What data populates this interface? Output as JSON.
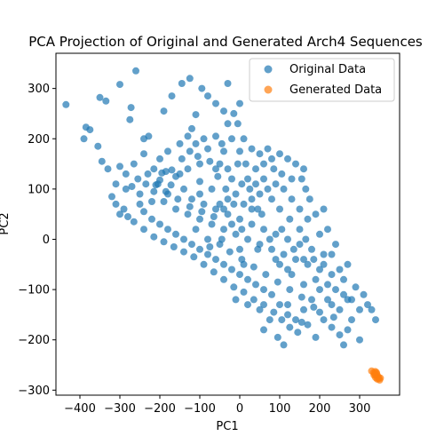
{
  "chart_data": {
    "type": "scatter",
    "title": "PCA Projection of Original and Generated Arch4 Sequences",
    "xlabel": "PC1",
    "ylabel": "PC2",
    "xlim": [
      -460,
      400
    ],
    "ylim": [
      -310,
      370
    ],
    "xticks": [
      -400,
      -300,
      -200,
      -100,
      0,
      100,
      200,
      300
    ],
    "yticks": [
      -300,
      -200,
      -100,
      0,
      100,
      200,
      300
    ],
    "grid": false,
    "legend": {
      "position": "top-right",
      "entries": [
        "Original Data",
        "Generated Data"
      ]
    },
    "series": [
      {
        "name": "Original Data",
        "color": "#1f77b4",
        "points": [
          [
            -260,
            335
          ],
          [
            -435,
            268
          ],
          [
            -300,
            308
          ],
          [
            -350,
            282
          ],
          [
            -335,
            275
          ],
          [
            -272,
            262
          ],
          [
            -275,
            238
          ],
          [
            -385,
            223
          ],
          [
            -375,
            218
          ],
          [
            -390,
            200
          ],
          [
            -355,
            185
          ],
          [
            -228,
            205
          ],
          [
            -240,
            200
          ],
          [
            -170,
            138
          ],
          [
            -195,
            132
          ],
          [
            -160,
            125
          ],
          [
            -172,
            108
          ],
          [
            -200,
            118
          ],
          [
            -210,
            108
          ],
          [
            -145,
            160
          ],
          [
            -125,
            175
          ],
          [
            -105,
            165
          ],
          [
            -90,
            200
          ],
          [
            -60,
            205
          ],
          [
            -50,
            150
          ],
          [
            -120,
            220
          ],
          [
            -80,
            285
          ],
          [
            -60,
            270
          ],
          [
            -40,
            255
          ],
          [
            -110,
            248
          ],
          [
            -125,
            320
          ],
          [
            -145,
            310
          ],
          [
            -170,
            285
          ],
          [
            -190,
            255
          ],
          [
            -95,
            300
          ],
          [
            -30,
            310
          ],
          [
            0,
            270
          ],
          [
            -15,
            250
          ],
          [
            -5,
            230
          ],
          [
            -30,
            230
          ],
          [
            -40,
            175
          ],
          [
            0,
            175
          ],
          [
            -60,
            140
          ],
          [
            -20,
            120
          ],
          [
            20,
            120
          ],
          [
            40,
            140
          ],
          [
            60,
            150
          ],
          [
            80,
            160
          ],
          [
            100,
            170
          ],
          [
            120,
            160
          ],
          [
            140,
            150
          ],
          [
            160,
            140
          ],
          [
            -5,
            150
          ],
          [
            -55,
            125
          ],
          [
            -100,
            115
          ],
          [
            -140,
            100
          ],
          [
            -180,
            90
          ],
          [
            -220,
            75
          ],
          [
            -250,
            70
          ],
          [
            -290,
            60
          ],
          [
            -320,
            85
          ],
          [
            -330,
            140
          ],
          [
            -345,
            155
          ],
          [
            -300,
            145
          ],
          [
            -285,
            130
          ],
          [
            -265,
            150
          ],
          [
            -255,
            120
          ],
          [
            -235,
            110
          ],
          [
            -215,
            95
          ],
          [
            -190,
            75
          ],
          [
            -160,
            60
          ],
          [
            -130,
            50
          ],
          [
            -100,
            40
          ],
          [
            -70,
            30
          ],
          [
            -40,
            20
          ],
          [
            -10,
            10
          ],
          [
            20,
            0
          ],
          [
            50,
            -10
          ],
          [
            80,
            -20
          ],
          [
            110,
            -30
          ],
          [
            140,
            -40
          ],
          [
            170,
            -50
          ],
          [
            200,
            -60
          ],
          [
            230,
            -70
          ],
          [
            260,
            -80
          ],
          [
            290,
            -95
          ],
          [
            310,
            -110
          ],
          [
            320,
            -130
          ],
          [
            300,
            -140
          ],
          [
            280,
            -120
          ],
          [
            260,
            -110
          ],
          [
            240,
            -100
          ],
          [
            220,
            -90
          ],
          [
            200,
            -100
          ],
          [
            180,
            -120
          ],
          [
            160,
            -140
          ],
          [
            140,
            -160
          ],
          [
            120,
            -150
          ],
          [
            100,
            -130
          ],
          [
            80,
            -110
          ],
          [
            60,
            -100
          ],
          [
            40,
            -90
          ],
          [
            20,
            -80
          ],
          [
            0,
            -70
          ],
          [
            -20,
            -60
          ],
          [
            -40,
            -50
          ],
          [
            -60,
            -40
          ],
          [
            -80,
            -30
          ],
          [
            -100,
            -20
          ],
          [
            -120,
            -10
          ],
          [
            -140,
            0
          ],
          [
            -160,
            10
          ],
          [
            -180,
            20
          ],
          [
            -200,
            30
          ],
          [
            -220,
            40
          ],
          [
            -240,
            55
          ],
          [
            -120,
            80
          ],
          [
            -90,
            70
          ],
          [
            -60,
            60
          ],
          [
            -30,
            50
          ],
          [
            0,
            40
          ],
          [
            30,
            30
          ],
          [
            60,
            20
          ],
          [
            90,
            10
          ],
          [
            120,
            0
          ],
          [
            150,
            -10
          ],
          [
            180,
            -20
          ],
          [
            210,
            -30
          ],
          [
            170,
            40
          ],
          [
            150,
            60
          ],
          [
            130,
            80
          ],
          [
            110,
            100
          ],
          [
            90,
            110
          ],
          [
            70,
            100
          ],
          [
            50,
            90
          ],
          [
            30,
            80
          ],
          [
            10,
            70
          ],
          [
            -10,
            90
          ],
          [
            -30,
            80
          ],
          [
            -50,
            70
          ],
          [
            200,
            10
          ],
          [
            190,
            50
          ],
          [
            175,
            80
          ],
          [
            165,
            100
          ],
          [
            155,
            120
          ],
          [
            130,
            120
          ],
          [
            105,
            130
          ],
          [
            85,
            140
          ],
          [
            60,
            120
          ],
          [
            40,
            110
          ],
          [
            25,
            100
          ],
          [
            5,
            110
          ],
          [
            -15,
            70
          ],
          [
            -35,
            100
          ],
          [
            230,
            -30
          ],
          [
            250,
            -60
          ],
          [
            270,
            -50
          ],
          [
            240,
            -10
          ],
          [
            220,
            20
          ],
          [
            210,
            60
          ],
          [
            -25,
            -25
          ],
          [
            5,
            -40
          ],
          [
            35,
            -55
          ],
          [
            65,
            -70
          ],
          [
            95,
            -85
          ],
          [
            125,
            -100
          ],
          [
            155,
            -115
          ],
          [
            185,
            -135
          ],
          [
            210,
            -160
          ],
          [
            230,
            -175
          ],
          [
            250,
            -190
          ],
          [
            270,
            -180
          ],
          [
            235,
            -155
          ],
          [
            200,
            -145
          ],
          [
            170,
            -170
          ],
          [
            145,
            -185
          ],
          [
            125,
            -175
          ],
          [
            105,
            -160
          ],
          [
            85,
            -145
          ],
          [
            60,
            -130
          ],
          [
            35,
            -120
          ],
          [
            10,
            -105
          ],
          [
            -15,
            -95
          ],
          [
            -40,
            -80
          ],
          [
            -65,
            -65
          ],
          [
            -90,
            -50
          ],
          [
            -115,
            -35
          ],
          [
            -140,
            -25
          ],
          [
            -165,
            -15
          ],
          [
            -190,
            -5
          ],
          [
            -215,
            5
          ],
          [
            -240,
            20
          ],
          [
            -265,
            35
          ],
          [
            -280,
            45
          ],
          [
            -300,
            50
          ],
          [
            -310,
            70
          ],
          [
            -200,
            160
          ],
          [
            -180,
            175
          ],
          [
            -150,
            190
          ],
          [
            -130,
            205
          ],
          [
            -110,
            190
          ],
          [
            -80,
            180
          ],
          [
            -45,
            190
          ],
          [
            -20,
            200
          ],
          [
            10,
            200
          ],
          [
            30,
            180
          ],
          [
            50,
            170
          ],
          [
            70,
            180
          ],
          [
            0,
            -20
          ],
          [
            -50,
            -10
          ],
          [
            -80,
            0
          ],
          [
            -110,
            20
          ],
          [
            -70,
            100
          ],
          [
            -100,
            90
          ],
          [
            100,
            -50
          ],
          [
            130,
            -70
          ],
          [
            160,
            -90
          ],
          [
            190,
            -80
          ],
          [
            220,
            -120
          ],
          [
            250,
            -140
          ],
          [
            280,
            -160
          ],
          [
            330,
            -140
          ],
          [
            340,
            -160
          ],
          [
            300,
            -200
          ],
          [
            260,
            -210
          ],
          [
            190,
            -195
          ],
          [
            155,
            -165
          ],
          [
            75,
            -160
          ],
          [
            60,
            -180
          ],
          [
            95,
            -195
          ],
          [
            110,
            -210
          ],
          [
            120,
            -130
          ],
          [
            50,
            -140
          ],
          [
            20,
            -130
          ],
          [
            -10,
            -120
          ],
          [
            160,
            -40
          ],
          [
            120,
            -60
          ],
          [
            90,
            -40
          ],
          [
            270,
            -120
          ],
          [
            230,
            -130
          ],
          [
            150,
            20
          ],
          [
            125,
            40
          ],
          [
            100,
            60
          ],
          [
            80,
            80
          ],
          [
            55,
            50
          ],
          [
            30,
            60
          ],
          [
            5,
            20
          ],
          [
            -20,
            30
          ],
          [
            -45,
            0
          ],
          [
            -75,
            -15
          ],
          [
            10,
            -50
          ],
          [
            45,
            -20
          ],
          [
            75,
            0
          ],
          [
            105,
            20
          ],
          [
            135,
            -20
          ],
          [
            165,
            0
          ],
          [
            185,
            -40
          ],
          [
            210,
            -50
          ],
          [
            -130,
            140
          ],
          [
            -100,
            150
          ],
          [
            -150,
            130
          ],
          [
            -75,
            155
          ],
          [
            -30,
            140
          ],
          [
            15,
            150
          ],
          [
            45,
            60
          ],
          [
            -40,
            60
          ],
          [
            -65,
            45
          ],
          [
            -95,
            55
          ],
          [
            -125,
            65
          ],
          [
            -155,
            80
          ],
          [
            -185,
            95
          ],
          [
            -205,
            110
          ],
          [
            -230,
            130
          ],
          [
            -250,
            90
          ],
          [
            -270,
            105
          ],
          [
            -285,
            100
          ],
          [
            -310,
            110
          ],
          [
            -240,
            170
          ],
          [
            -215,
            140
          ],
          [
            -185,
            135
          ]
        ]
      },
      {
        "name": "Generated Data",
        "color": "#ff7f0e",
        "points": [
          [
            330,
            -262
          ],
          [
            335,
            -265
          ],
          [
            338,
            -268
          ],
          [
            340,
            -270
          ],
          [
            342,
            -265
          ],
          [
            345,
            -272
          ],
          [
            348,
            -275
          ],
          [
            344,
            -278
          ],
          [
            340,
            -275
          ],
          [
            336,
            -270
          ],
          [
            350,
            -280
          ],
          [
            347,
            -277
          ],
          [
            352,
            -276
          ],
          [
            343,
            -268
          ],
          [
            339,
            -263
          ]
        ]
      }
    ]
  }
}
